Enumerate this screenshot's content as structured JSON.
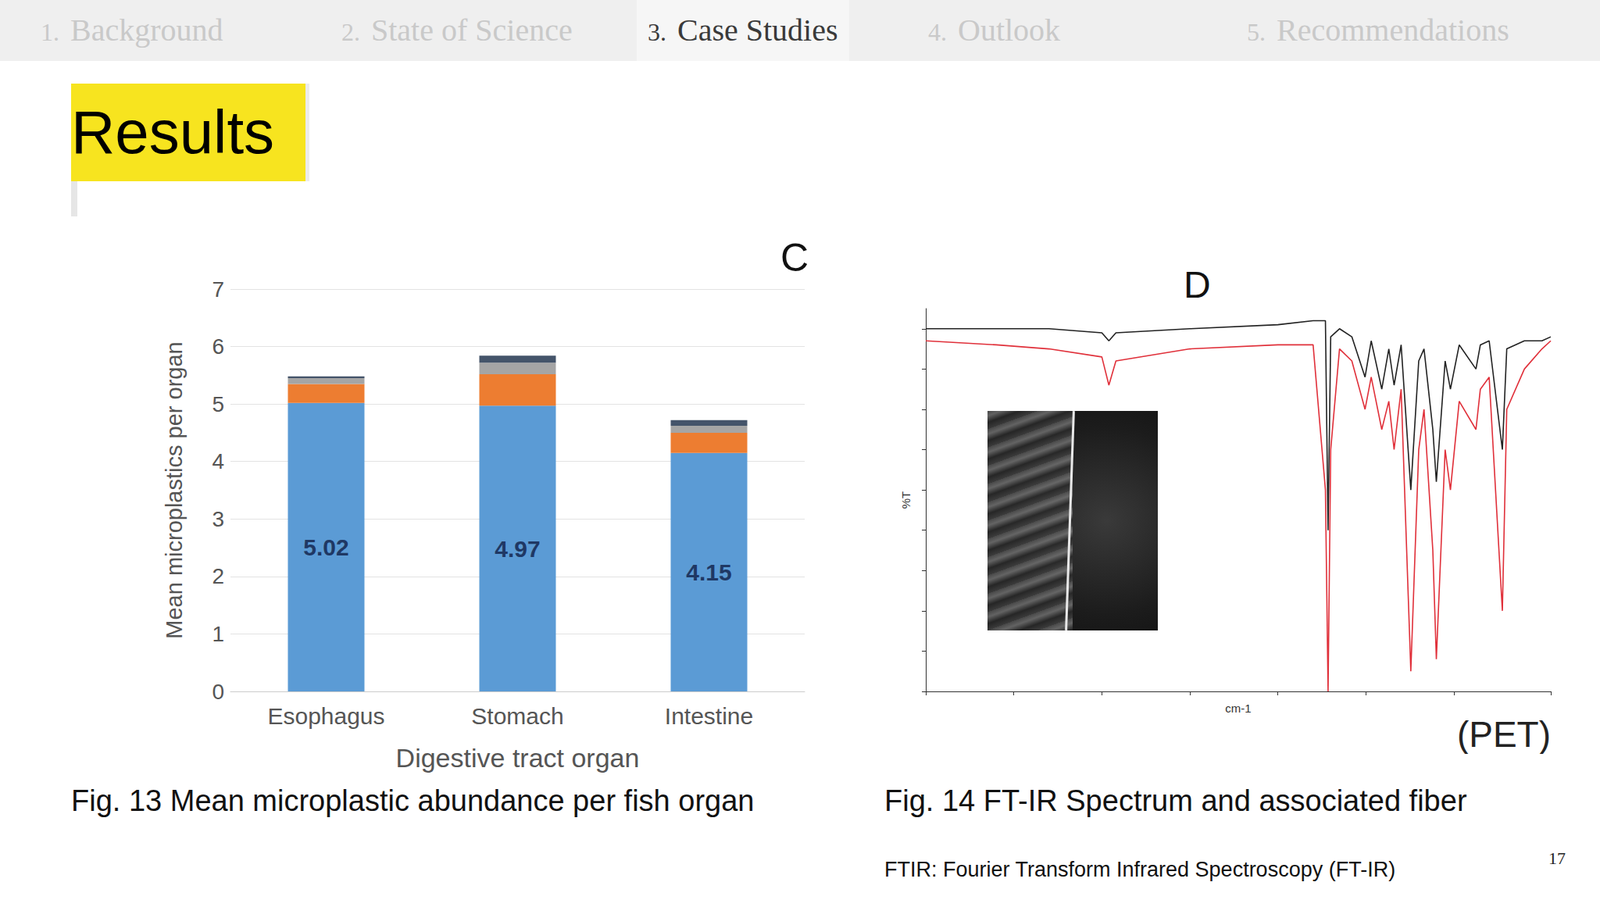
{
  "slide": {
    "nav": [
      {
        "number": "1.",
        "label": "Background"
      },
      {
        "number": "2.",
        "label": "State of Science"
      },
      {
        "number": "3.",
        "label": "Case Studies",
        "active": true
      },
      {
        "number": "4.",
        "label": "Outlook"
      },
      {
        "number": "5.",
        "label": "Recommendations"
      }
    ],
    "heading": "Results",
    "captions": [
      "Fig. 13 Mean microplastic abundance per fish organ",
      "Fig. 14 FT-IR Spectrum and associated fiber"
    ],
    "note": "FTIR: Fourier Transform Infrared Spectroscopy (FT-IR)",
    "page_number": "17"
  },
  "chart_data": [
    {
      "type": "bar",
      "panel": "C",
      "stacked": true,
      "grid": true,
      "x_label": "Digestive tract organ",
      "y_label": "Mean microplastics per organ",
      "categories": [
        "Esophagus",
        "Stomach",
        "Intestine"
      ],
      "series": [
        {
          "color": "#5b9bd5",
          "values": [
            5.02,
            4.97,
            4.15
          ],
          "data_labels": true
        },
        {
          "color": "#ed7d31",
          "values": [
            0.33,
            0.55,
            0.35
          ]
        },
        {
          "color": "#a5a5a5",
          "values": [
            0.1,
            0.2,
            0.12
          ]
        },
        {
          "color": "#44546a",
          "values": [
            0.03,
            0.12,
            0.1
          ]
        }
      ],
      "ylim": [
        0,
        7
      ],
      "yticks": [
        0,
        1,
        2,
        3,
        4,
        5,
        6,
        7
      ]
    },
    {
      "type": "line",
      "panel": "D",
      "annotations": [
        "(PET)"
      ],
      "grid": false,
      "tick_labels": false,
      "x_label": "cm-1",
      "y_label": "%T",
      "x": [
        4000,
        3600,
        3300,
        3000,
        2960,
        2920,
        2500,
        2000,
        1800,
        1730,
        1715,
        1700,
        1650,
        1580,
        1505,
        1470,
        1410,
        1370,
        1340,
        1300,
        1245,
        1200,
        1170,
        1120,
        1100,
        1050,
        1020,
        970,
        875,
        850,
        800,
        725,
        700,
        600,
        500,
        450
      ],
      "series": [
        {
          "color": "#222222",
          "values": [
            100,
            100,
            100,
            99,
            97,
            99,
            100,
            101,
            102,
            102,
            50,
            98,
            100,
            98,
            88,
            97,
            85,
            95,
            86,
            96,
            60,
            92,
            95,
            75,
            62,
            92,
            85,
            96,
            90,
            96,
            97,
            70,
            95,
            97,
            97,
            98
          ]
        },
        {
          "color": "#e0303a",
          "values": [
            97,
            96,
            95,
            93,
            86,
            92,
            95,
            96,
            96,
            60,
            10,
            70,
            95,
            92,
            80,
            88,
            75,
            82,
            70,
            85,
            15,
            70,
            80,
            45,
            18,
            70,
            60,
            82,
            75,
            85,
            88,
            30,
            80,
            90,
            95,
            97
          ]
        }
      ],
      "xlim": [
        4000,
        450
      ],
      "xticks": [
        4000,
        3500,
        3000,
        2500,
        2000,
        1500,
        1000,
        450
      ],
      "ylim": [
        10,
        105
      ],
      "yticks": [
        10,
        20,
        30,
        40,
        50,
        60,
        70,
        80,
        90,
        100
      ]
    }
  ]
}
